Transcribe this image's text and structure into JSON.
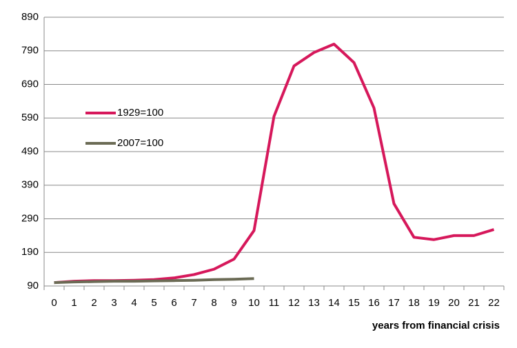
{
  "chart_data": {
    "type": "line",
    "x_label": "years from financial crisis",
    "x": [
      0,
      1,
      2,
      3,
      4,
      5,
      6,
      7,
      8,
      9,
      10,
      11,
      12,
      13,
      14,
      15,
      16,
      17,
      18,
      19,
      20,
      21,
      22
    ],
    "series": [
      {
        "name": "1929=100",
        "color": "#d6185b",
        "values": [
          100,
          104,
          106,
          106,
          107,
          109,
          114,
          124,
          140,
          170,
          255,
          595,
          745,
          785,
          810,
          755,
          620,
          335,
          235,
          228,
          240,
          240,
          258
        ]
      },
      {
        "name": "2007=100",
        "color": "#6b6b55",
        "values": [
          100,
          102,
          103,
          104,
          104,
          105,
          106,
          107,
          109,
          110,
          112,
          null,
          null,
          null,
          null,
          null,
          null,
          null,
          null,
          null,
          null,
          null,
          null
        ]
      }
    ],
    "ylim": [
      90,
      890
    ],
    "yticks": [
      90,
      190,
      290,
      390,
      490,
      590,
      690,
      790,
      890
    ],
    "grid": true,
    "legend": "left"
  }
}
